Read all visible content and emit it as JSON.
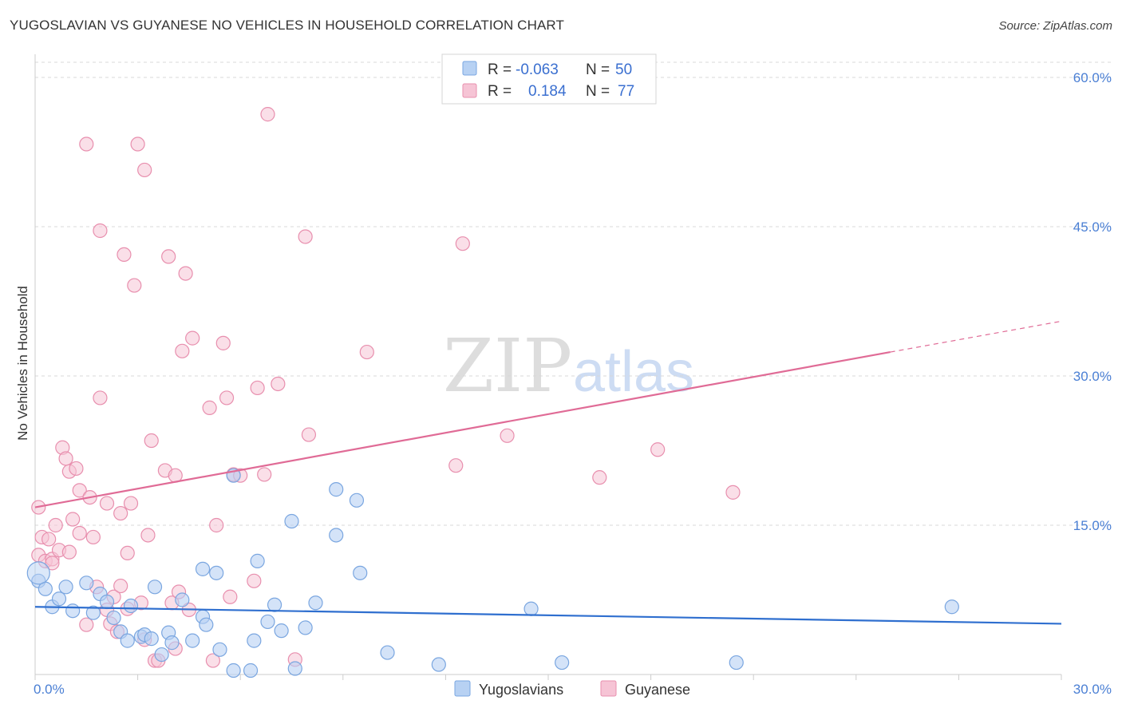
{
  "header": {
    "title": "YUGOSLAVIAN VS GUYANESE NO VEHICLES IN HOUSEHOLD CORRELATION CHART",
    "source": "Source: ZipAtlas.com"
  },
  "watermark": {
    "zip": "ZIP",
    "atlas": "atlas"
  },
  "colors": {
    "blue_fill": "#b7d1f3",
    "blue_stroke": "#7aa6e0",
    "blue_line": "#2f6fcf",
    "pink_fill": "#f6c4d5",
    "pink_stroke": "#e88fae",
    "pink_line": "#e06b96",
    "tick_label": "#4a7fd4",
    "grid": "#d8d8d8"
  },
  "legend": {
    "rows": [
      {
        "r_label": "R =",
        "r_value": "-0.063",
        "n_label": "N =",
        "n_value": "50"
      },
      {
        "r_label": "R =",
        "r_value": "0.184",
        "n_label": "N =",
        "n_value": "77"
      }
    ]
  },
  "chart_data": {
    "type": "scatter",
    "title": "YUGOSLAVIAN VS GUYANESE NO VEHICLES IN HOUSEHOLD CORRELATION CHART",
    "xlabel": "",
    "ylabel": "No Vehicles in Household",
    "xlim": [
      0,
      30
    ],
    "ylim": [
      0,
      60
    ],
    "x_tick_labels": [
      "0.0%",
      "30.0%"
    ],
    "y_ticks": [
      15,
      30,
      45,
      60
    ],
    "y_tick_labels": [
      "15.0%",
      "30.0%",
      "45.0%",
      "60.0%"
    ],
    "grid": true,
    "legend_position": "top-center",
    "series": [
      {
        "name": "Yugoslavians",
        "r": -0.063,
        "n": 50,
        "trend": {
          "x0": 0,
          "y0": 6.8,
          "x1": 30,
          "y1": 5.1
        },
        "points": [
          [
            0.1,
            9.4
          ],
          [
            0.3,
            8.6
          ],
          [
            0.5,
            6.8
          ],
          [
            0.7,
            7.6
          ],
          [
            0.9,
            8.8
          ],
          [
            1.1,
            6.4
          ],
          [
            1.5,
            9.2
          ],
          [
            1.7,
            6.2
          ],
          [
            1.9,
            8.1
          ],
          [
            2.1,
            7.3
          ],
          [
            2.3,
            5.7
          ],
          [
            2.5,
            4.3
          ],
          [
            2.7,
            3.4
          ],
          [
            2.8,
            6.9
          ],
          [
            3.1,
            3.8
          ],
          [
            3.2,
            4.0
          ],
          [
            3.4,
            3.6
          ],
          [
            3.5,
            8.8
          ],
          [
            3.7,
            2.0
          ],
          [
            3.9,
            4.2
          ],
          [
            4.0,
            3.2
          ],
          [
            4.3,
            7.5
          ],
          [
            4.6,
            3.4
          ],
          [
            4.9,
            10.6
          ],
          [
            4.9,
            5.8
          ],
          [
            5.0,
            5.0
          ],
          [
            5.3,
            10.2
          ],
          [
            5.4,
            2.5
          ],
          [
            5.8,
            0.4
          ],
          [
            5.8,
            20.0
          ],
          [
            6.3,
            0.4
          ],
          [
            6.4,
            3.4
          ],
          [
            6.5,
            11.4
          ],
          [
            6.8,
            5.3
          ],
          [
            7.0,
            7.0
          ],
          [
            7.2,
            4.4
          ],
          [
            7.5,
            15.4
          ],
          [
            7.6,
            0.6
          ],
          [
            7.9,
            4.7
          ],
          [
            8.2,
            7.2
          ],
          [
            8.8,
            18.6
          ],
          [
            8.8,
            14.0
          ],
          [
            9.4,
            17.5
          ],
          [
            9.5,
            10.2
          ],
          [
            10.3,
            2.2
          ],
          [
            11.8,
            1.0
          ],
          [
            14.5,
            6.6
          ],
          [
            15.4,
            1.2
          ],
          [
            20.5,
            1.2
          ],
          [
            26.8,
            6.8
          ]
        ]
      },
      {
        "name": "Guyanese",
        "r": 0.184,
        "n": 77,
        "trend": {
          "x0": 0,
          "y0": 16.8,
          "x1": 25,
          "y1": 32.4,
          "dash_x1": 30,
          "dash_y1": 35.5
        },
        "points": [
          [
            0.1,
            12.0
          ],
          [
            0.2,
            13.8
          ],
          [
            0.3,
            11.4
          ],
          [
            0.4,
            13.6
          ],
          [
            0.5,
            11.6
          ],
          [
            0.5,
            11.2
          ],
          [
            0.6,
            15.0
          ],
          [
            0.7,
            12.5
          ],
          [
            0.8,
            22.8
          ],
          [
            0.9,
            21.7
          ],
          [
            1.0,
            12.3
          ],
          [
            1.0,
            20.4
          ],
          [
            1.1,
            15.6
          ],
          [
            1.2,
            20.7
          ],
          [
            1.3,
            14.2
          ],
          [
            1.3,
            18.5
          ],
          [
            1.5,
            5.0
          ],
          [
            1.5,
            53.3
          ],
          [
            1.6,
            17.8
          ],
          [
            1.7,
            13.8
          ],
          [
            1.8,
            8.8
          ],
          [
            1.9,
            27.8
          ],
          [
            1.9,
            44.6
          ],
          [
            2.1,
            6.5
          ],
          [
            2.1,
            17.2
          ],
          [
            2.2,
            5.1
          ],
          [
            2.3,
            7.8
          ],
          [
            2.4,
            4.3
          ],
          [
            2.5,
            8.9
          ],
          [
            2.5,
            16.2
          ],
          [
            2.6,
            42.2
          ],
          [
            2.7,
            12.2
          ],
          [
            2.7,
            6.6
          ],
          [
            2.8,
            17.2
          ],
          [
            2.9,
            39.1
          ],
          [
            3.0,
            53.3
          ],
          [
            3.1,
            7.2
          ],
          [
            3.2,
            50.7
          ],
          [
            3.2,
            3.5
          ],
          [
            3.3,
            14.0
          ],
          [
            3.4,
            23.5
          ],
          [
            3.5,
            1.4
          ],
          [
            3.6,
            1.4
          ],
          [
            3.8,
            20.5
          ],
          [
            3.9,
            42.0
          ],
          [
            4.0,
            7.2
          ],
          [
            4.1,
            2.6
          ],
          [
            4.1,
            20.0
          ],
          [
            4.2,
            8.3
          ],
          [
            4.3,
            32.5
          ],
          [
            4.4,
            40.3
          ],
          [
            4.5,
            6.5
          ],
          [
            4.6,
            33.8
          ],
          [
            5.1,
            26.8
          ],
          [
            5.2,
            1.4
          ],
          [
            5.3,
            15.0
          ],
          [
            5.5,
            33.3
          ],
          [
            5.6,
            27.8
          ],
          [
            5.7,
            7.8
          ],
          [
            5.8,
            20.1
          ],
          [
            6.0,
            20.0
          ],
          [
            6.4,
            9.4
          ],
          [
            6.5,
            28.8
          ],
          [
            6.7,
            20.1
          ],
          [
            6.8,
            56.3
          ],
          [
            7.1,
            29.2
          ],
          [
            7.6,
            1.5
          ],
          [
            7.9,
            44.0
          ],
          [
            8.0,
            24.1
          ],
          [
            9.7,
            32.4
          ],
          [
            12.3,
            21.0
          ],
          [
            12.5,
            43.3
          ],
          [
            13.8,
            24.0
          ],
          [
            16.5,
            19.8
          ],
          [
            18.2,
            22.6
          ],
          [
            20.4,
            18.3
          ],
          [
            0.1,
            16.8
          ]
        ]
      }
    ]
  }
}
